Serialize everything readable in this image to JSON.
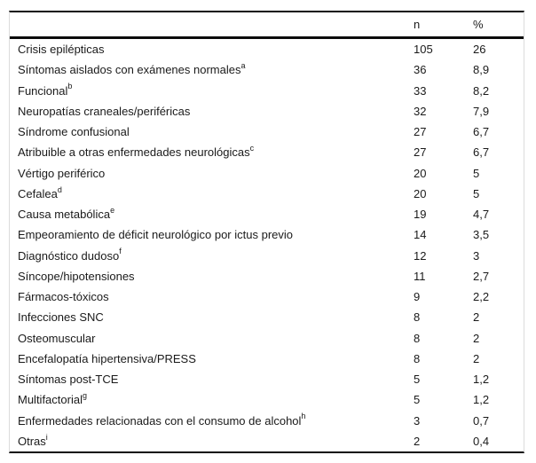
{
  "table": {
    "header": {
      "label": "",
      "n": "n",
      "pct": "%"
    },
    "rows": [
      {
        "label": "Crisis epilépticas",
        "sup": "",
        "n": "105",
        "pct": "26"
      },
      {
        "label": "Síntomas aislados con exámenes normales",
        "sup": "a",
        "n": "36",
        "pct": "8,9"
      },
      {
        "label": "Funcional",
        "sup": "b",
        "n": "33",
        "pct": "8,2"
      },
      {
        "label": "Neuropatías craneales/periféricas",
        "sup": "",
        "n": "32",
        "pct": "7,9"
      },
      {
        "label": "Síndrome confusional",
        "sup": "",
        "n": "27",
        "pct": "6,7"
      },
      {
        "label": "Atribuible a otras enfermedades neurológicas",
        "sup": "c",
        "n": "27",
        "pct": "6,7"
      },
      {
        "label": "Vértigo periférico",
        "sup": "",
        "n": "20",
        "pct": "5"
      },
      {
        "label": "Cefalea",
        "sup": "d",
        "n": "20",
        "pct": "5"
      },
      {
        "label": "Causa metabólica",
        "sup": "e",
        "n": "19",
        "pct": "4,7"
      },
      {
        "label": "Empeoramiento de déficit neurológico por ictus previo",
        "sup": "",
        "n": "14",
        "pct": "3,5"
      },
      {
        "label": "Diagnóstico dudoso",
        "sup": "f",
        "n": "12",
        "pct": "3"
      },
      {
        "label": "Síncope/hipotensiones",
        "sup": "",
        "n": "11",
        "pct": "2,7"
      },
      {
        "label": "Fármacos-tóxicos",
        "sup": "",
        "n": "9",
        "pct": "2,2"
      },
      {
        "label": "Infecciones SNC",
        "sup": "",
        "n": "8",
        "pct": "2"
      },
      {
        "label": "Osteomuscular",
        "sup": "",
        "n": "8",
        "pct": "2"
      },
      {
        "label": "Encefalopatía hipertensiva/PRESS",
        "sup": "",
        "n": "8",
        "pct": "2"
      },
      {
        "label": "Síntomas post-TCE",
        "sup": "",
        "n": "5",
        "pct": "1,2"
      },
      {
        "label": "Multifactorial",
        "sup": "g",
        "n": "5",
        "pct": "1,2"
      },
      {
        "label": "Enfermedades relacionadas con el consumo de alcohol",
        "sup": "h",
        "n": "3",
        "pct": "0,7"
      },
      {
        "label": "Otras",
        "sup": "i",
        "n": "2",
        "pct": "0,4"
      }
    ],
    "colors": {
      "rule": "#0b0b0b",
      "side_border": "#dcdcdc",
      "text": "#1a1a1a"
    }
  }
}
